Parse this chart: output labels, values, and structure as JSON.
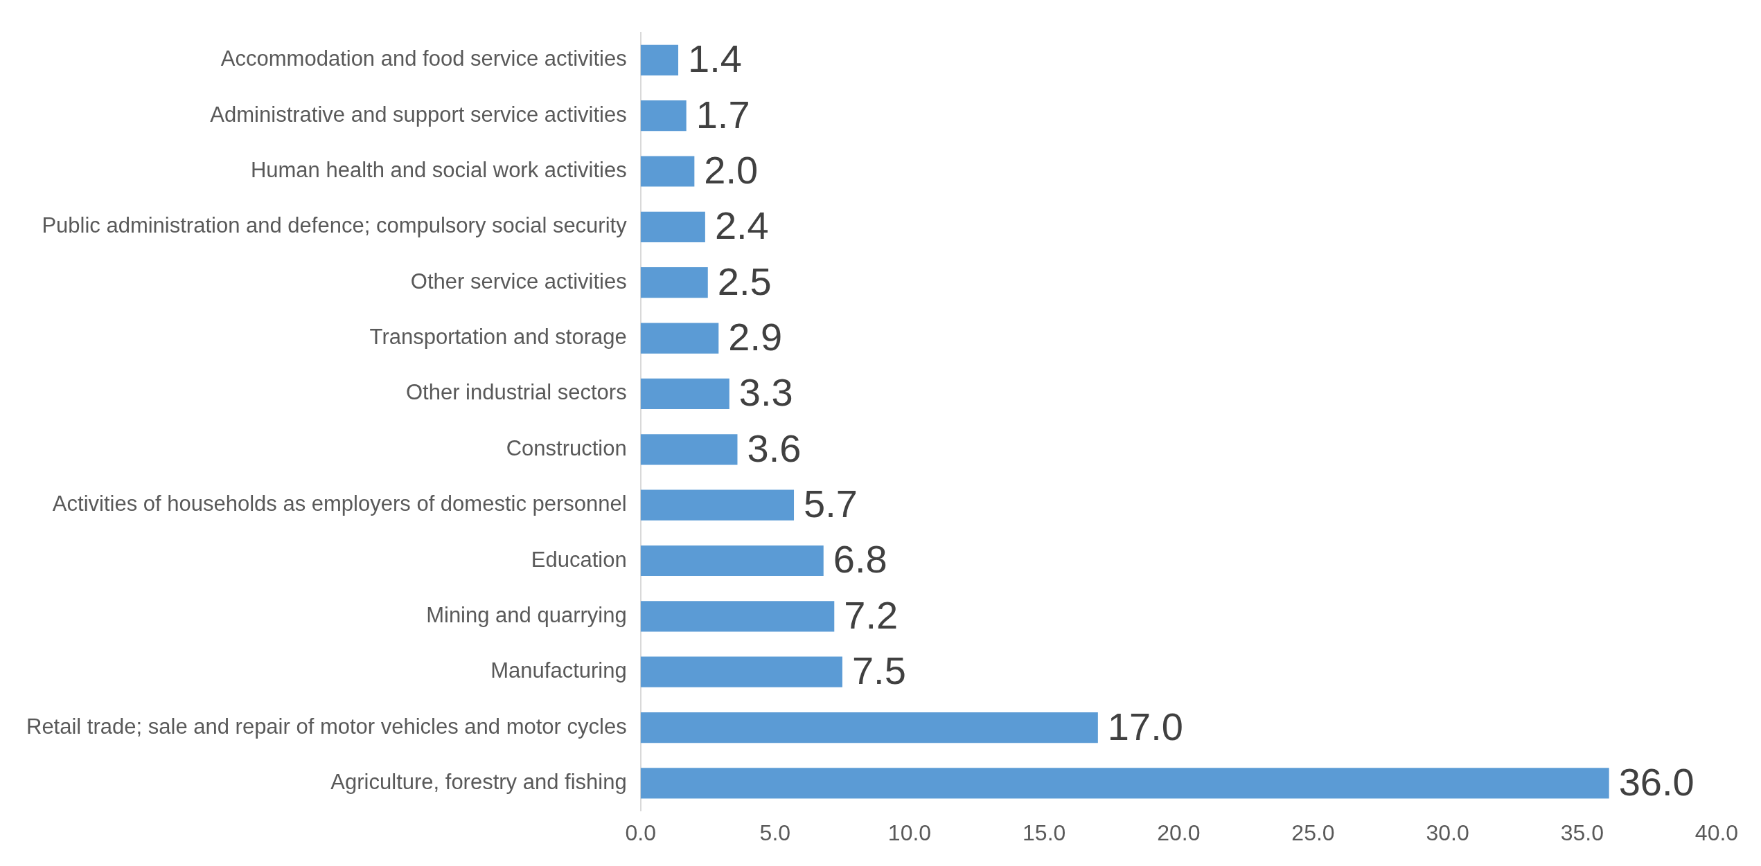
{
  "chart_data": {
    "type": "bar",
    "orientation": "horizontal",
    "categories": [
      "Accommodation and food service activities",
      "Administrative and support service activities",
      "Human health and social work activities",
      "Public administration and defence; compulsory social security",
      "Other service activities",
      "Transportation and storage",
      "Other industrial sectors",
      "Construction",
      "Activities of households as employers of domestic personnel",
      "Education",
      "Mining and quarrying",
      "Manufacturing",
      "Retail trade; sale and repair of motor vehicles and motor cycles",
      "Agriculture, forestry and fishing"
    ],
    "values": [
      1.4,
      1.7,
      2.0,
      2.4,
      2.5,
      2.9,
      3.3,
      3.6,
      5.7,
      6.8,
      7.2,
      7.5,
      17.0,
      36.0
    ],
    "value_labels": [
      "1.4",
      "1.7",
      "2.0",
      "2.4",
      "2.5",
      "2.9",
      "3.3",
      "3.6",
      "5.7",
      "6.8",
      "7.2",
      "7.5",
      "17.0",
      "36.0"
    ],
    "color": "#5b9bd5",
    "xlim": [
      0,
      40
    ],
    "xticks": [
      {
        "value": 0,
        "label": "0.0"
      },
      {
        "value": 5,
        "label": "5.0"
      },
      {
        "value": 10,
        "label": "10.0"
      },
      {
        "value": 15,
        "label": "15.0"
      },
      {
        "value": 20,
        "label": "20.0"
      },
      {
        "value": 25,
        "label": "25.0"
      },
      {
        "value": 30,
        "label": "30.0"
      },
      {
        "value": 35,
        "label": "35.0"
      },
      {
        "value": 40,
        "label": "40.0"
      }
    ],
    "grid": false,
    "legend": false
  }
}
